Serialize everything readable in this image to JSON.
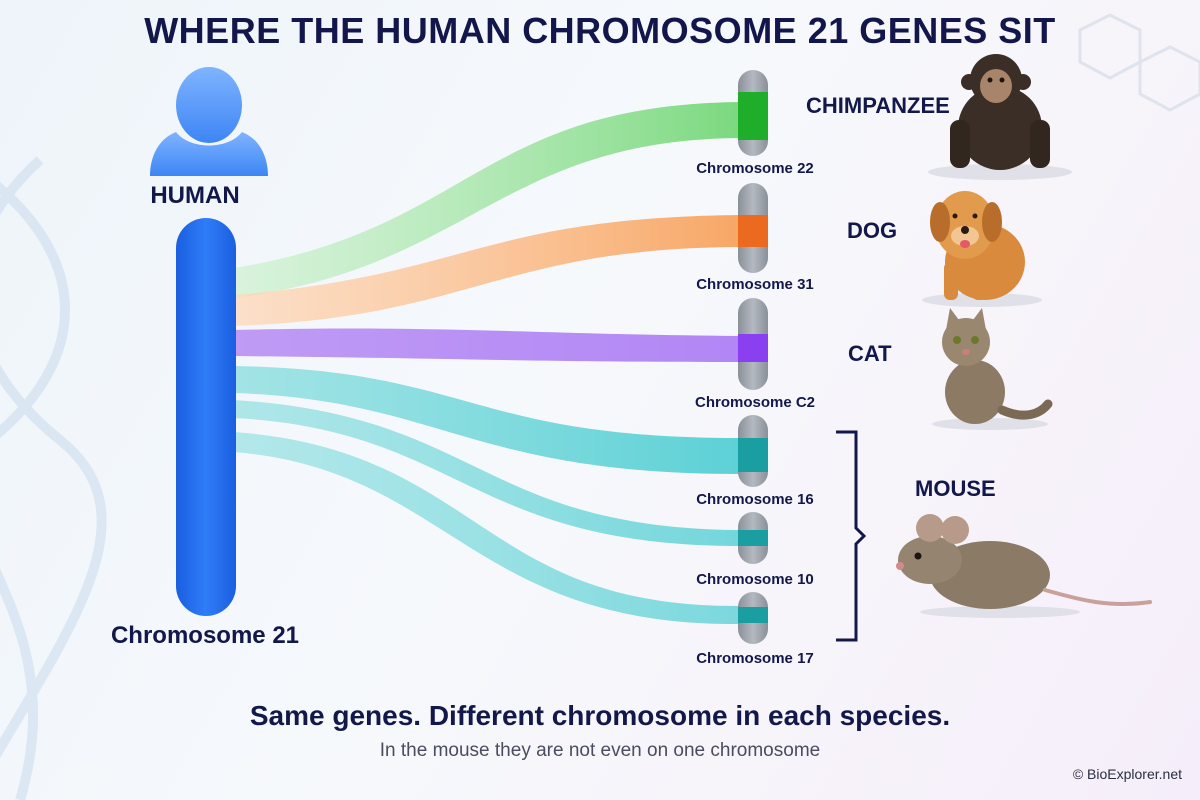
{
  "title": "WHERE THE HUMAN CHROMOSOME 21 GENES SIT",
  "human": {
    "label": "HUMAN",
    "chromosome_label": "Chromosome 21",
    "color": "#1f6ff0"
  },
  "species": [
    {
      "name": "CHIMPANZEE",
      "chromosomes": [
        "Chromosome 22"
      ],
      "icon": "chimpanzee-icon"
    },
    {
      "name": "DOG",
      "chromosomes": [
        "Chromosome 31"
      ],
      "icon": "dog-icon"
    },
    {
      "name": "CAT",
      "chromosomes": [
        "Chromosome C2"
      ],
      "icon": "cat-icon"
    },
    {
      "name": "MOUSE",
      "chromosomes": [
        "Chromosome 16",
        "Chromosome 10",
        "Chromosome 17"
      ],
      "icon": "mouse-icon"
    }
  ],
  "targets": [
    {
      "label": "Chromosome 22",
      "color": "#1fae2a"
    },
    {
      "label": "Chromosome 31",
      "color": "#ec6a1f"
    },
    {
      "label": "Chromosome C2",
      "color": "#8a3ff0"
    },
    {
      "label": "Chromosome 16",
      "color": "#1a9ea2"
    },
    {
      "label": "Chromosome 10",
      "color": "#1a9ea2"
    },
    {
      "label": "Chromosome 17",
      "color": "#1a9ea2"
    }
  ],
  "tagline": "Same genes. Different chromosome in each species.",
  "subline": "In the mouse they are not even on one chromosome",
  "credit": "© BioExplorer.net"
}
